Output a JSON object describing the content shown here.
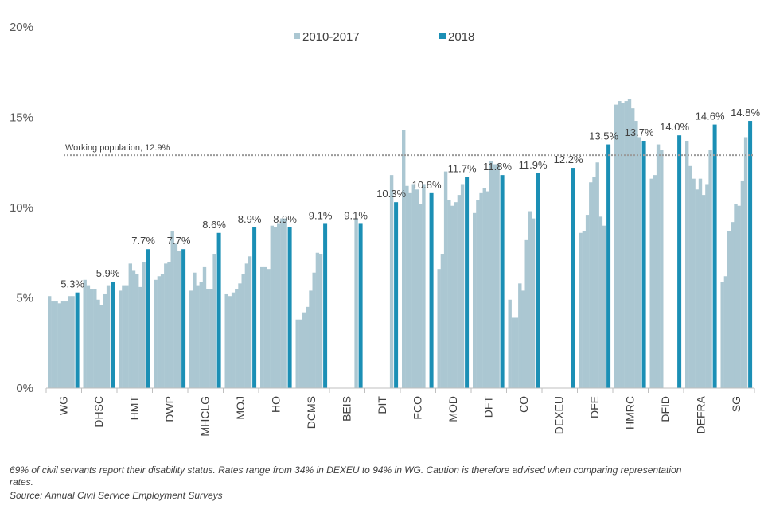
{
  "chart_data": {
    "type": "bar",
    "y_unit": "%",
    "ylim": [
      0,
      20
    ],
    "yticks": [
      0,
      5,
      10,
      15,
      20
    ],
    "ytick_labels": [
      "0%",
      "5%",
      "10%",
      "15%",
      "20%"
    ],
    "legend": [
      {
        "name": "2010-2017",
        "color": "#abc7d2"
      },
      {
        "name": "2018",
        "color": "#1b8fb5"
      }
    ],
    "reference_line": {
      "label": "Working population, 12.9%",
      "value": 12.9
    },
    "categories": [
      "WG",
      "DHSC",
      "HMT",
      "DWP",
      "MHCLG",
      "MOJ",
      "HO",
      "DCMS",
      "BEIS",
      "DIT",
      "FCO",
      "MOD",
      "DFT",
      "CO",
      "DEXEU",
      "DFE",
      "HMRC",
      "DFID",
      "DEFRA",
      "SG"
    ],
    "series": [
      {
        "name": "2010-2017",
        "values": [
          [
            5.1,
            4.8,
            4.8,
            4.7,
            4.8,
            4.8,
            5.1,
            5.1
          ],
          [
            6.0,
            5.7,
            5.5,
            5.5,
            4.9,
            4.6,
            5.2,
            5.7
          ],
          [
            5.4,
            5.7,
            5.7,
            6.9,
            6.5,
            6.3,
            5.6,
            7.0
          ],
          [
            6.0,
            6.2,
            6.3,
            6.9,
            7.0,
            8.7,
            8.0,
            7.6
          ],
          [
            5.4,
            6.4,
            5.7,
            5.9,
            6.7,
            5.5,
            5.5,
            7.4
          ],
          [
            5.2,
            5.1,
            5.3,
            5.5,
            5.8,
            6.3,
            6.9,
            7.3
          ],
          [
            6.7,
            6.7,
            6.6,
            9.0,
            8.9,
            9.1,
            9.4,
            9.4
          ],
          [
            3.8,
            3.8,
            4.2,
            4.5,
            5.4,
            6.4,
            7.5,
            7.4
          ],
          [
            null,
            null,
            null,
            null,
            null,
            null,
            null,
            9.4
          ],
          [
            null,
            null,
            null,
            null,
            null,
            null,
            null,
            11.8
          ],
          [
            14.3,
            11.2,
            10.8,
            11.3,
            11.0,
            10.2,
            11.3,
            null
          ],
          [
            6.6,
            7.4,
            12.0,
            10.4,
            10.1,
            10.3,
            10.7,
            11.3
          ],
          [
            9.7,
            10.4,
            10.8,
            11.1,
            10.9,
            12.6,
            12.4,
            12.4
          ],
          [
            4.9,
            3.9,
            3.9,
            5.8,
            5.4,
            8.2,
            9.8,
            9.4
          ],
          [
            null,
            null,
            null,
            null,
            null,
            null,
            null,
            null
          ],
          [
            8.6,
            8.7,
            9.6,
            11.4,
            11.7,
            12.5,
            9.5,
            9.0
          ],
          [
            15.7,
            15.9,
            15.8,
            15.9,
            16.0,
            15.5,
            14.8,
            13.9
          ],
          [
            11.6,
            11.8,
            13.5,
            13.2,
            null,
            null,
            null,
            null
          ],
          [
            13.7,
            12.3,
            11.6,
            11.0,
            11.6,
            10.7,
            11.3,
            13.2
          ],
          [
            5.9,
            6.2,
            8.7,
            9.2,
            10.2,
            10.1,
            11.5,
            13.9
          ]
        ]
      },
      {
        "name": "2018",
        "values": [
          5.3,
          5.9,
          7.7,
          7.7,
          8.6,
          8.9,
          8.9,
          9.1,
          9.1,
          10.3,
          10.8,
          11.7,
          11.8,
          11.9,
          12.2,
          13.5,
          13.7,
          14.0,
          14.6,
          14.8
        ]
      }
    ],
    "data_labels": [
      "5.3%",
      "5.9%",
      "7.7%",
      "7.7%",
      "8.6%",
      "8.9%",
      "8.9%",
      "9.1%",
      "9.1%",
      "10.3%",
      "10.8%",
      "11.7%",
      "11.8%",
      "11.9%",
      "12.2%",
      "13.5%",
      "13.7%",
      "14.0%",
      "14.6%",
      "14.8%"
    ]
  },
  "footnote": {
    "line1": "69% of civil servants report their disability status. Rates range from 34% in DEXEU to 94% in WG. Caution is therefore advised when  comparing representation",
    "line2": "rates.",
    "source": "Source: Annual Civil Service Employment Surveys"
  }
}
